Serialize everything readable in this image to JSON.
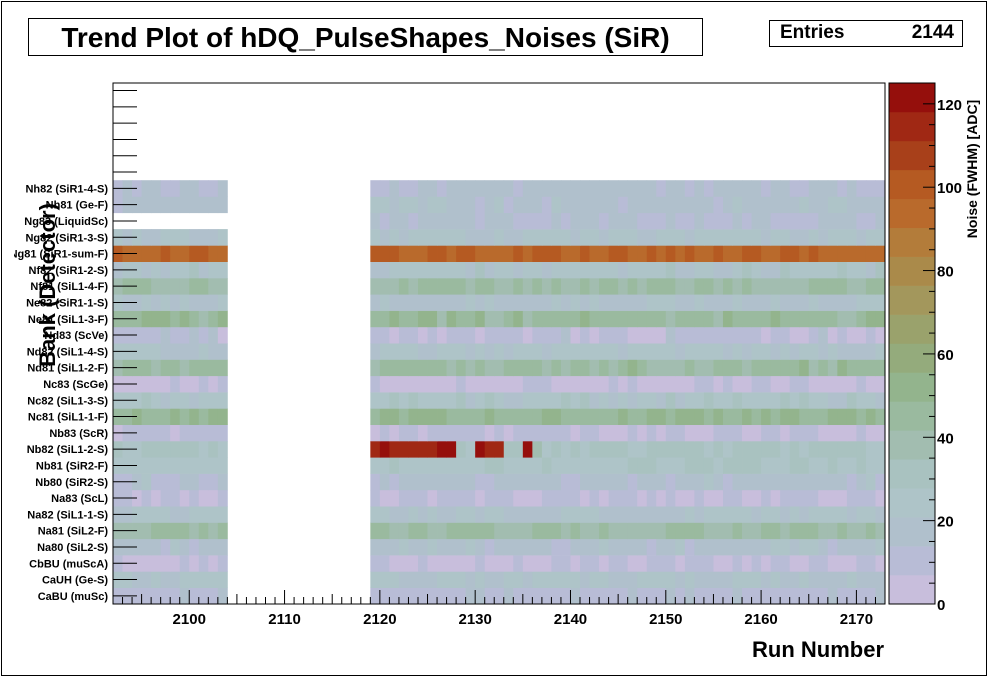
{
  "title": "Trend Plot of hDQ_PulseShapes_Noises (SiR)",
  "stats": {
    "label": "Entries",
    "value": "2144"
  },
  "chart_data": {
    "type": "heatmap",
    "title": "Trend Plot of hDQ_PulseShapes_Noises (SiR)",
    "xlabel": "Run Number",
    "ylabel": "Bank (Detector)",
    "zlabel": "Noise (FWHM) [ADC]",
    "xlim": [
      2092,
      2173
    ],
    "x_ticks": [
      2100,
      2110,
      2120,
      2130,
      2140,
      2150,
      2160,
      2170
    ],
    "z_range": [
      0,
      125
    ],
    "z_ticks": [
      0,
      20,
      40,
      60,
      80,
      100,
      120
    ],
    "palette": [
      "#c8bedc",
      "#b8bcd6",
      "#b0c0cc",
      "#aec4c8",
      "#a9c2c0",
      "#a2bdb0",
      "#9aba9f",
      "#93b48d",
      "#94ab7c",
      "#9aa26c",
      "#a3975c",
      "#aa8a4a",
      "#b37c3a",
      "#b96a2c",
      "#b55a22",
      "#a8401a",
      "#a02814",
      "#950f0c"
    ],
    "runs_with_data": [
      [
        2092,
        2104
      ],
      [
        2119,
        2173
      ]
    ],
    "rows": [
      {
        "label": "CaBU (muSc)",
        "noise": 12
      },
      {
        "label": "CaUH (Ge-S)",
        "noise": 22
      },
      {
        "label": "CbBU (muScA)",
        "noise": 6
      },
      {
        "label": "Na80 (SiL2-S)",
        "noise": 18
      },
      {
        "label": "Na81 (SiL2-F)",
        "noise": 42
      },
      {
        "label": "Na82 (SiL1-1-S)",
        "noise": 22
      },
      {
        "label": "Na83 (ScL)",
        "noise": 8
      },
      {
        "label": "Nb80 (SiR2-S)",
        "noise": 16
      },
      {
        "label": "Nb81 (SiR2-F)",
        "noise": 26
      },
      {
        "label": "Nb82 (SiL1-2-S)",
        "noise": 30,
        "hot_noise": 120
      },
      {
        "label": "Nb83 (ScR)",
        "noise": 8
      },
      {
        "label": "Nc81 (SiL1-1-F)",
        "noise": 48
      },
      {
        "label": "Nc82 (SiL1-3-S)",
        "noise": 24
      },
      {
        "label": "Nc83 (ScGe)",
        "noise": 4
      },
      {
        "label": "Nd81 (SiL1-2-F)",
        "noise": 44
      },
      {
        "label": "Nd82 (SiL1-4-S)",
        "noise": 22
      },
      {
        "label": "Nd83 (ScVe)",
        "noise": 10
      },
      {
        "label": "Ne81 (SiL1-3-F)",
        "noise": 46
      },
      {
        "label": "Ne82 (SiR1-1-S)",
        "noise": 20
      },
      {
        "label": "Nf81 (SiL1-4-F)",
        "noise": 42
      },
      {
        "label": "Nf82 (SiR1-2-S)",
        "noise": 24
      },
      {
        "label": "Ng81 (SiR1-sum-F)",
        "noise": 96
      },
      {
        "label": "Ng82 (SiR1-3-S)",
        "noise": 22
      },
      {
        "label": "Ng83 (LiquidSc)",
        "noise": 14
      },
      {
        "label": "Nh81 (Ge-F)",
        "noise": 18
      },
      {
        "label": "Nh82 (SiR1-4-S)",
        "noise": 16
      }
    ]
  }
}
